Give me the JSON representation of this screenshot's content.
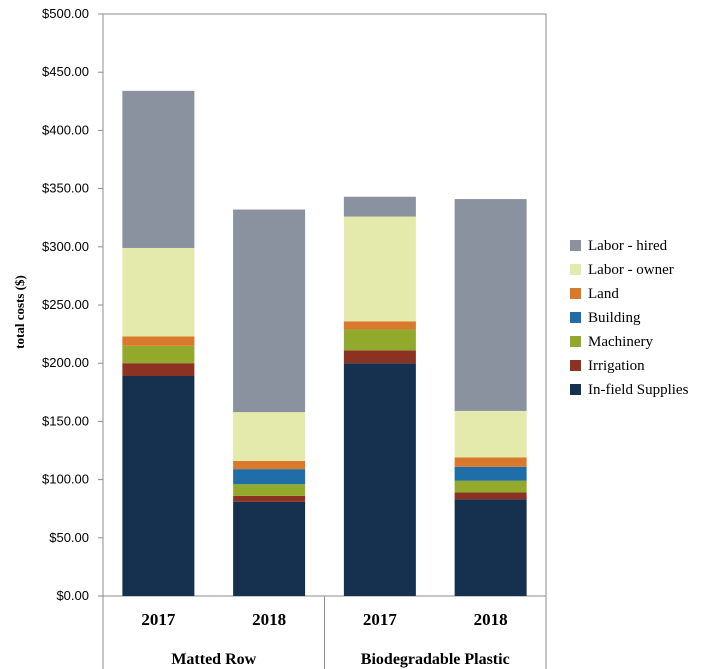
{
  "chart_data": {
    "type": "bar",
    "stacked": true,
    "ylabel": "total costs ($)",
    "xlabel": "",
    "ylim": [
      0,
      500
    ],
    "ytick_step": 50,
    "ytick_format": "currency_2dp",
    "grid": false,
    "legend_position": "right",
    "categories": [
      "2017",
      "2018",
      "2017",
      "2018"
    ],
    "groups": [
      {
        "label": "Matted Row",
        "categories": [
          0,
          1
        ]
      },
      {
        "label": "Biodegradable Plastic",
        "categories": [
          2,
          3
        ]
      }
    ],
    "series": [
      {
        "name": "In-field Supplies",
        "color": "#16314f",
        "values": [
          189,
          81,
          200,
          83
        ]
      },
      {
        "name": "Irrigation",
        "color": "#8b3222",
        "values": [
          11,
          5,
          11,
          6
        ]
      },
      {
        "name": "Machinery",
        "color": "#93a92b",
        "values": [
          15,
          10,
          18,
          10
        ]
      },
      {
        "name": "Building",
        "color": "#1f6ea8",
        "values": [
          0,
          13,
          0,
          12
        ]
      },
      {
        "name": "Land",
        "color": "#d9792b",
        "values": [
          8,
          7,
          7,
          8
        ]
      },
      {
        "name": "Labor - owner",
        "color": "#e4e9ac",
        "values": [
          76,
          42,
          90,
          40
        ]
      },
      {
        "name": "Labor - hired",
        "color": "#8a919f",
        "values": [
          135,
          174,
          17,
          182
        ]
      }
    ]
  }
}
